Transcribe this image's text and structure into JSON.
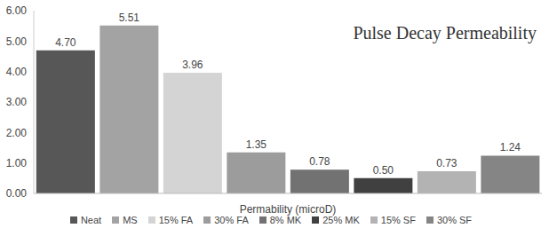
{
  "chart_data": {
    "type": "bar",
    "title": "Pulse Decay Permeability",
    "x_label": "Permability (microD)",
    "categories": [
      "Neat",
      "MS",
      "15% FA",
      "30% FA",
      "8% MK",
      "25% MK",
      "15% SF",
      "30% SF"
    ],
    "values": [
      4.7,
      5.51,
      3.96,
      1.35,
      0.78,
      0.5,
      0.73,
      1.24
    ],
    "value_labels": [
      "4.70",
      "5.51",
      "3.96",
      "1.35",
      "0.78",
      "0.50",
      "0.73",
      "1.24"
    ],
    "colors": [
      "#575757",
      "#a3a3a3",
      "#d4d4d4",
      "#9c9c9c",
      "#727272",
      "#404040",
      "#b3b3b3",
      "#858585"
    ],
    "ylim": [
      0,
      6
    ],
    "yticks": [
      {
        "value": 0,
        "label": "0.00"
      },
      {
        "value": 1,
        "label": "1.00"
      },
      {
        "value": 2,
        "label": "2.00"
      },
      {
        "value": 3,
        "label": "3.00"
      },
      {
        "value": 4,
        "label": "4.00"
      },
      {
        "value": 5,
        "label": "5.00"
      },
      {
        "value": 6,
        "label": "6.00"
      }
    ],
    "data_labels": true,
    "tick_labels": "y",
    "legend": "bottom",
    "grid": false
  }
}
